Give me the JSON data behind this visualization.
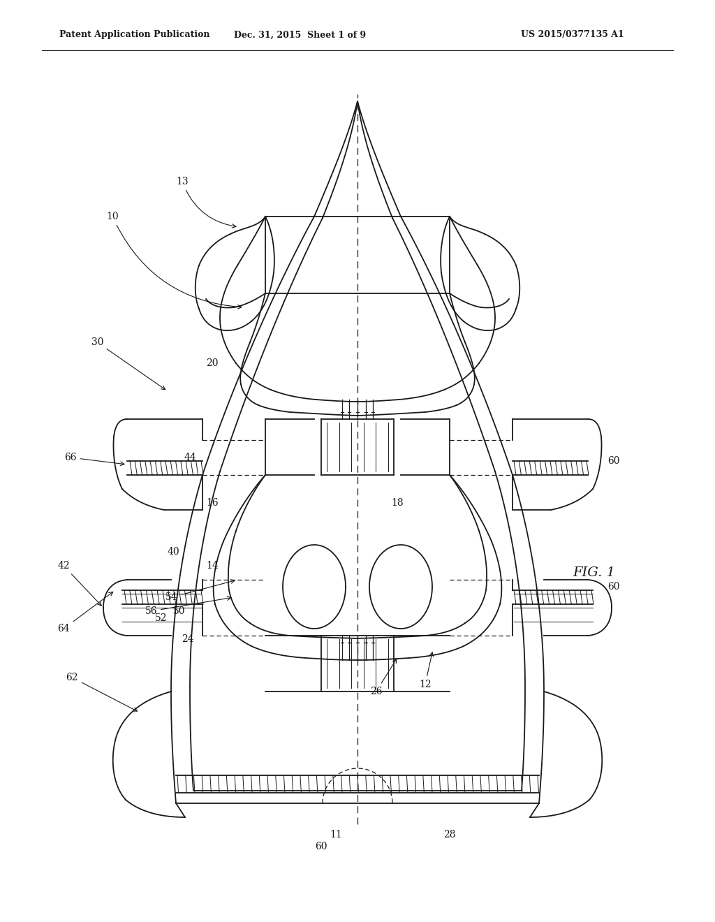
{
  "header_left": "Patent Application Publication",
  "header_mid": "Dec. 31, 2015  Sheet 1 of 9",
  "header_right": "US 2015/0377135 A1",
  "fig_label": "FIG. 1",
  "background_color": "#ffffff",
  "line_color": "#1a1a1a"
}
